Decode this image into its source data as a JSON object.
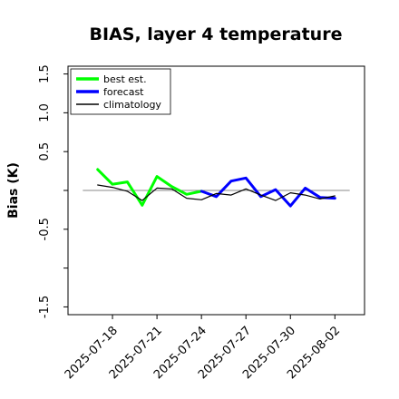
{
  "chart_data": {
    "type": "line",
    "title": "BIAS, layer 4 temperature",
    "xlabel": "",
    "ylabel": "Bias (K)",
    "ylim": [
      -1.6,
      1.6
    ],
    "yticks": [
      -1.5,
      -1.0,
      -0.5,
      0.0,
      0.5,
      1.0,
      1.5
    ],
    "ytick_labels": [
      "-1.5",
      "",
      "-0.5",
      "",
      "0.5",
      "1.0",
      "1.5"
    ],
    "xlim": [
      "2025-07-15",
      "2025-08-04"
    ],
    "xticks": [
      "2025-07-18",
      "2025-07-21",
      "2025-07-24",
      "2025-07-27",
      "2025-07-30",
      "2025-08-02"
    ],
    "highlight_tick": "2025-07-24",
    "highlight_color": "#2e8b2e",
    "reference_line": 0.0,
    "legend": "top-left",
    "grid": false,
    "series": [
      {
        "name": "best est.",
        "color": "#00ff00",
        "x": [
          "2025-07-17",
          "2025-07-18",
          "2025-07-19",
          "2025-07-20",
          "2025-07-21",
          "2025-07-22",
          "2025-07-23",
          "2025-07-24"
        ],
        "values": [
          0.27,
          0.08,
          0.11,
          -0.19,
          0.18,
          0.05,
          -0.05,
          -0.01
        ]
      },
      {
        "name": "forecast",
        "color": "#0000ff",
        "x": [
          "2025-07-24",
          "2025-07-25",
          "2025-07-26",
          "2025-07-27",
          "2025-07-28",
          "2025-07-29",
          "2025-07-30",
          "2025-07-31",
          "2025-08-01",
          "2025-08-02"
        ],
        "values": [
          -0.01,
          -0.08,
          0.12,
          0.16,
          -0.08,
          0.01,
          -0.2,
          0.03,
          -0.09,
          -0.1
        ]
      },
      {
        "name": "climatology",
        "color": "#000000",
        "x": [
          "2025-07-17",
          "2025-07-18",
          "2025-07-19",
          "2025-07-20",
          "2025-07-21",
          "2025-07-22",
          "2025-07-23",
          "2025-07-24",
          "2025-07-25",
          "2025-07-26",
          "2025-07-27",
          "2025-07-28",
          "2025-07-29",
          "2025-07-30",
          "2025-07-31",
          "2025-08-01",
          "2025-08-02"
        ],
        "values": [
          0.07,
          0.04,
          -0.01,
          -0.13,
          0.03,
          0.02,
          -0.1,
          -0.12,
          -0.04,
          -0.06,
          0.02,
          -0.06,
          -0.13,
          -0.03,
          -0.06,
          -0.11,
          -0.07
        ]
      }
    ]
  }
}
